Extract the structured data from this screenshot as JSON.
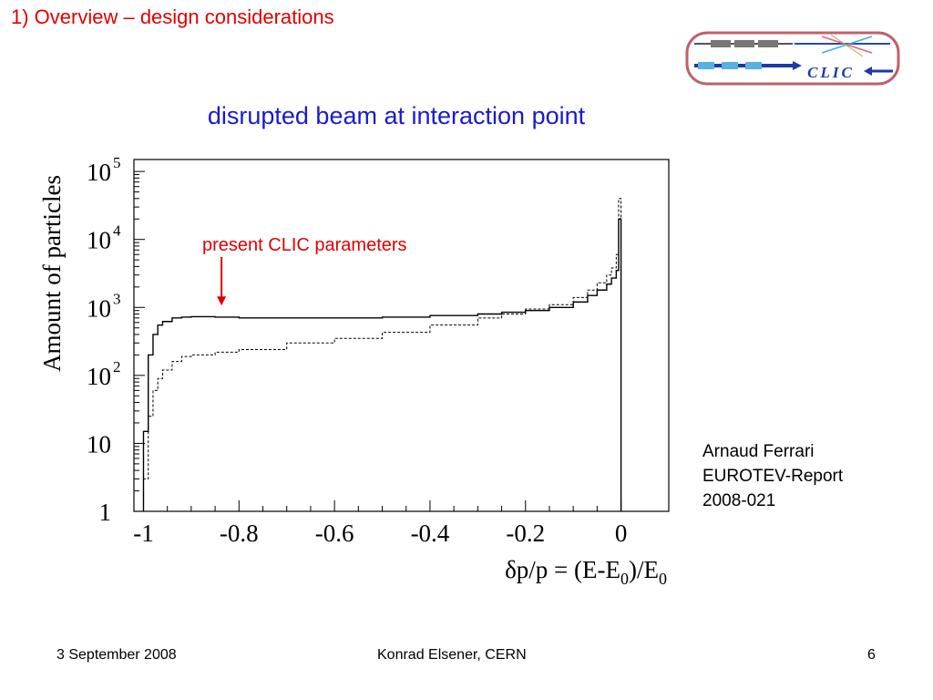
{
  "slide": {
    "title": "1) Overview – design considerations",
    "logo_text": "CLIC",
    "side_note": [
      "Arnaud Ferrari",
      "EUROTEV-Report",
      "2008-021"
    ],
    "footer": {
      "date": "3 September 2008",
      "author": "Konrad Elsener, CERN",
      "page": "6"
    }
  },
  "colors": {
    "title_red": "#e00000",
    "chart_title_blue": "#1a1ad0",
    "logo_border": "#c0606a",
    "logo_blue": "#1a3aa8"
  },
  "chart_data": {
    "type": "line",
    "title": "disrupted beam at interaction point",
    "ylabel": "Amount of particles",
    "xlabel_parts": {
      "base": "δp/p = (E-E",
      "sub1": "0",
      "mid": ")/E",
      "sub2": "0"
    },
    "xlim": [
      -1.02,
      0.1
    ],
    "ylim": [
      1,
      150000
    ],
    "yscale": "log",
    "x_ticks": [
      -1,
      -0.8,
      -0.6,
      -0.4,
      -0.2,
      0
    ],
    "x_tick_labels": [
      "-1",
      "-0.8",
      "-0.6",
      "-0.4",
      "-0.2",
      "0"
    ],
    "y_ticks": [
      {
        "value": 1,
        "base": "1",
        "exp": ""
      },
      {
        "value": 10,
        "base": "10",
        "exp": ""
      },
      {
        "value": 100,
        "base": "10",
        "exp": "2"
      },
      {
        "value": 1000,
        "base": "10",
        "exp": "3"
      },
      {
        "value": 10000,
        "base": "10",
        "exp": "4"
      },
      {
        "value": 100000,
        "base": "10",
        "exp": "5"
      }
    ],
    "annotation": {
      "text": "present CLIC parameters",
      "arrow_x": -0.85,
      "arrow_y": 1000
    },
    "series": [
      {
        "style": "solid",
        "x": [
          -1.0,
          -0.99,
          -0.98,
          -0.97,
          -0.96,
          -0.94,
          -0.92,
          -0.9,
          -0.85,
          -0.8,
          -0.7,
          -0.6,
          -0.5,
          -0.4,
          -0.3,
          -0.25,
          -0.2,
          -0.15,
          -0.1,
          -0.07,
          -0.05,
          -0.03,
          -0.02,
          -0.01,
          -0.005,
          0.0
        ],
        "y": [
          15,
          200,
          400,
          550,
          620,
          700,
          720,
          730,
          720,
          700,
          700,
          700,
          720,
          760,
          800,
          850,
          900,
          1000,
          1200,
          1500,
          1800,
          2200,
          2700,
          3500,
          20000,
          1
        ]
      },
      {
        "style": "dashed",
        "x": [
          -1.0,
          -0.99,
          -0.98,
          -0.97,
          -0.96,
          -0.94,
          -0.92,
          -0.9,
          -0.85,
          -0.8,
          -0.7,
          -0.6,
          -0.5,
          -0.4,
          -0.3,
          -0.25,
          -0.2,
          -0.15,
          -0.1,
          -0.07,
          -0.05,
          -0.03,
          -0.02,
          -0.01,
          -0.005,
          0.0
        ],
        "y": [
          3,
          25,
          60,
          90,
          120,
          160,
          190,
          200,
          220,
          240,
          300,
          350,
          430,
          550,
          700,
          800,
          950,
          1100,
          1400,
          1800,
          2300,
          3000,
          3800,
          6000,
          40000,
          1
        ]
      }
    ]
  }
}
